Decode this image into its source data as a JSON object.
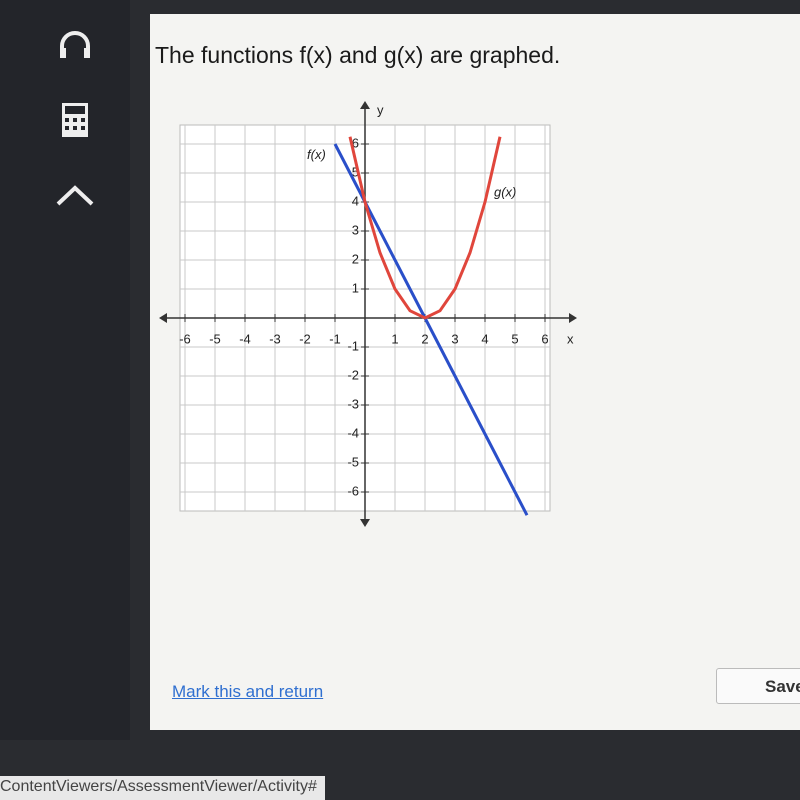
{
  "question": "The functions f(x) and g(x) are graphed.",
  "mark_link": "Mark this and return",
  "save_button": "Save",
  "url": "ContentViewers/AssessmentViewer/Activity#",
  "chart_data": {
    "type": "line",
    "x_label": "x",
    "y_label": "y",
    "x": [
      -1,
      -0.5,
      0,
      0.5,
      1,
      1.5,
      2,
      2.5,
      3,
      3.5,
      4,
      4.5,
      5,
      5.4
    ],
    "series": [
      {
        "name": "f(x)",
        "color": "#2a4fc9",
        "values": [
          6,
          5,
          4,
          3,
          2,
          1,
          0,
          -1,
          -2,
          -3,
          -4,
          -5,
          -6,
          -6.8
        ]
      },
      {
        "name": "g(x)",
        "color": "#e0463c",
        "values": [
          null,
          6.25,
          4,
          2.25,
          1,
          0.25,
          0,
          0.25,
          1,
          2.25,
          4,
          6.25,
          null,
          null
        ]
      }
    ],
    "xlim": [
      -7,
      7
    ],
    "ylim": [
      -7,
      7
    ],
    "xticks": [
      -6,
      -5,
      -4,
      -3,
      -2,
      -1,
      1,
      2,
      3,
      4,
      5,
      6
    ],
    "yticks": [
      -6,
      -5,
      -4,
      -3,
      -2,
      -1,
      1,
      2,
      3,
      4,
      5,
      6
    ],
    "grid": true
  }
}
